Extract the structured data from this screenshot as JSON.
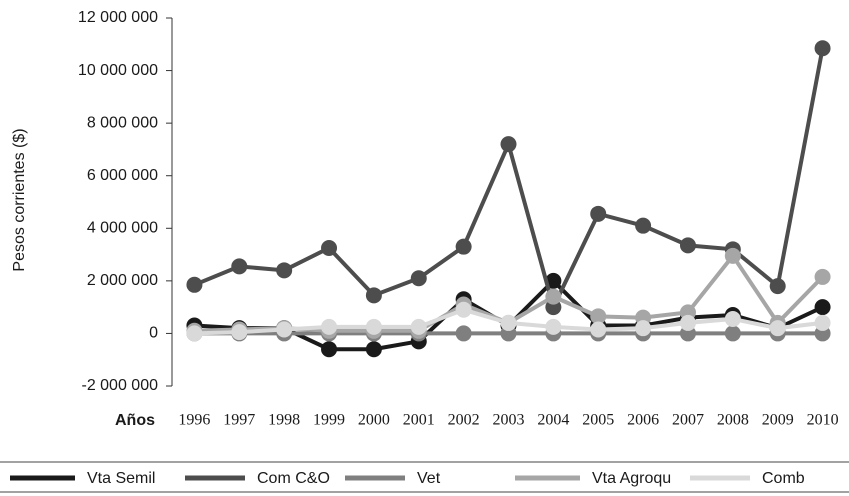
{
  "chart_data": {
    "type": "line",
    "y_label": "Pesos corrientes ($)",
    "x_label": "Años",
    "categories": [
      "1996",
      "1997",
      "1998",
      "1999",
      "2000",
      "2001",
      "2002",
      "2003",
      "2004",
      "2005",
      "2006",
      "2007",
      "2008",
      "2009",
      "2010"
    ],
    "series": [
      {
        "name": "Vta Semil",
        "color": "#1a1a1a",
        "values": [
          300000,
          200000,
          200000,
          -600000,
          -600000,
          -300000,
          1300000,
          300000,
          2000000,
          300000,
          300000,
          600000,
          700000,
          200000,
          1000000
        ]
      },
      {
        "name": "Com C&O",
        "color": "#4d4d4d",
        "values": [
          1850000,
          2550000,
          2400000,
          3250000,
          1450000,
          2100000,
          3300000,
          7200000,
          1000000,
          4550000,
          4100000,
          3350000,
          3200000,
          1800000,
          10850000
        ]
      },
      {
        "name": "Vet",
        "color": "#7f7f7f",
        "values": [
          0,
          0,
          0,
          0,
          0,
          0,
          0,
          0,
          0,
          0,
          0,
          0,
          0,
          0,
          0
        ]
      },
      {
        "name": "Vta Agroqu",
        "color": "#a6a6a6",
        "values": [
          100000,
          150000,
          200000,
          100000,
          100000,
          100000,
          1100000,
          400000,
          1400000,
          650000,
          600000,
          800000,
          2950000,
          400000,
          2150000
        ]
      },
      {
        "name": "Comb",
        "color": "#d9d9d9",
        "values": [
          0,
          50000,
          150000,
          250000,
          250000,
          250000,
          900000,
          400000,
          250000,
          150000,
          200000,
          400000,
          550000,
          200000,
          400000
        ]
      }
    ],
    "ylim": [
      -2000000,
      12000000
    ],
    "yticks": [
      {
        "value": -2000000,
        "label": "-2 000 000"
      },
      0,
      {
        "value": 2000000,
        "label": "2 000 000"
      },
      {
        "value": 4000000,
        "label": "4 000 000"
      },
      {
        "value": 6000000,
        "label": "6 000 000"
      },
      {
        "value": 8000000,
        "label": "8 000 000"
      },
      {
        "value": 10000000,
        "label": "10 000 000"
      },
      {
        "value": 12000000,
        "label": "12 000 000"
      }
    ]
  }
}
